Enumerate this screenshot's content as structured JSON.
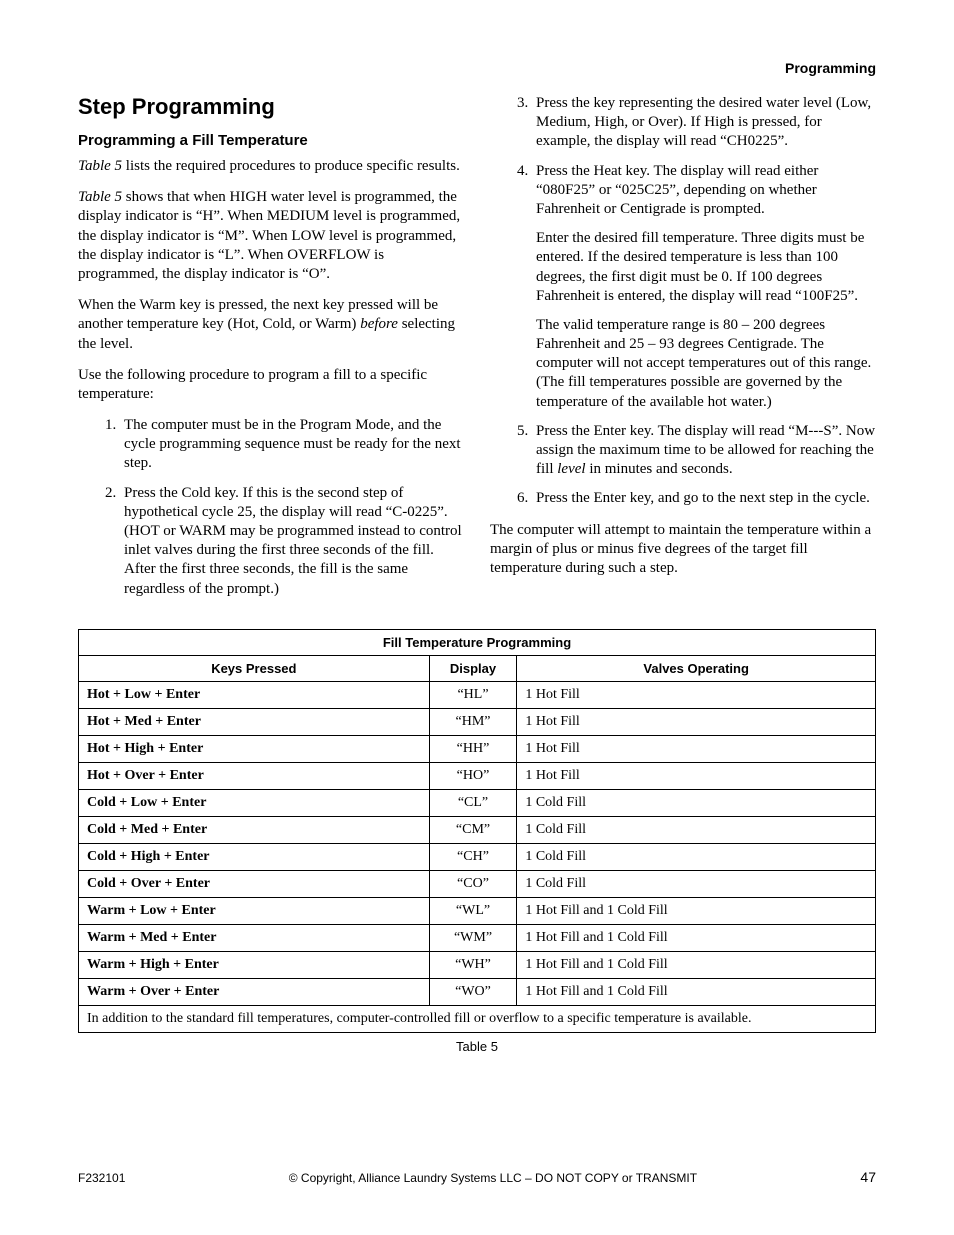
{
  "header": {
    "section": "Programming"
  },
  "left": {
    "h1": "Step Programming",
    "h2": "Programming a Fill Temperature",
    "p1_pre": "Table 5",
    "p1_post": " lists the required procedures to produce specific results.",
    "p2_pre": "Table 5",
    "p2_post": " shows that when HIGH water level is programmed, the display indicator is “H”. When MEDIUM level is programmed, the display indicator is “M”. When LOW level is programmed, the display indicator is “L”. When OVERFLOW is programmed, the display indicator is “O”.",
    "p3_a": "When the Warm key is pressed, the next key pressed will be another temperature key (Hot, Cold, or Warm) ",
    "p3_b": "before",
    "p3_c": " selecting the level.",
    "p4": "Use the following procedure to program a fill to a specific temperature:",
    "li1": "The computer must be in the Program Mode, and the cycle programming sequence must be ready for the next step.",
    "li2": "Press the Cold key. If this is the second step of hypothetical cycle 25, the display will read “C-0225”. (HOT or WARM may be programmed instead to control inlet valves during the first three seconds of the fill. After the first three seconds, the fill is the same regardless of the prompt.)"
  },
  "right": {
    "li3": "Press the key representing the desired water level (Low, Medium, High, or Over). If High is pressed, for example, the display will read “CH0225”.",
    "li4": "Press the Heat key. The display will read either “080F25” or “025C25”, depending on whether Fahrenheit or Centigrade is prompted.",
    "li4_sub1": "Enter the desired fill temperature. Three digits must be entered. If the desired temperature is less than 100 degrees, the first digit must be 0. If 100 degrees Fahrenheit is entered, the display will read “100F25”.",
    "li4_sub2": "The valid temperature range is 80 – 200 degrees Fahrenheit and 25 – 93 degrees Centigrade. The computer will not accept temperatures out of this range. (The fill temperatures possible are governed by the temperature of the available hot water.)",
    "li5_a": "Press the Enter key. The display will read “M---S”. Now assign the maximum time to be allowed for reaching the fill ",
    "li5_b": "level",
    "li5_c": " in minutes and seconds.",
    "li6": "Press the Enter key, and go to the next step in the cycle.",
    "p_after": "The computer will attempt to maintain the temperature within a margin of plus or minus five degrees of the target fill temperature during such a step."
  },
  "table": {
    "title": "Fill Temperature Programming",
    "col1": "Keys Pressed",
    "col2": "Display",
    "col3": "Valves Operating",
    "rows": [
      {
        "keys": "Hot + Low + Enter",
        "disp": "“HL”",
        "valves": "1 Hot Fill"
      },
      {
        "keys": "Hot + Med + Enter",
        "disp": "“HM”",
        "valves": "1 Hot Fill"
      },
      {
        "keys": "Hot + High + Enter",
        "disp": "“HH”",
        "valves": "1 Hot Fill"
      },
      {
        "keys": "Hot + Over + Enter",
        "disp": "“HO”",
        "valves": "1 Hot Fill"
      },
      {
        "keys": "Cold + Low + Enter",
        "disp": "“CL”",
        "valves": "1 Cold Fill"
      },
      {
        "keys": "Cold + Med + Enter",
        "disp": "“CM”",
        "valves": "1 Cold Fill"
      },
      {
        "keys": "Cold + High + Enter",
        "disp": "“CH”",
        "valves": "1 Cold Fill"
      },
      {
        "keys": "Cold + Over + Enter",
        "disp": "“CO”",
        "valves": "1 Cold Fill"
      },
      {
        "keys": "Warm + Low + Enter",
        "disp": "“WL”",
        "valves": "1 Hot Fill and 1 Cold Fill"
      },
      {
        "keys": "Warm + Med + Enter",
        "disp": "“WM”",
        "valves": "1 Hot Fill and 1 Cold Fill"
      },
      {
        "keys": "Warm + High + Enter",
        "disp": "“WH”",
        "valves": "1 Hot Fill and 1 Cold Fill"
      },
      {
        "keys": "Warm + Over + Enter",
        "disp": "“WO”",
        "valves": "1 Hot Fill and 1 Cold Fill"
      }
    ],
    "note": "In addition to the standard fill temperatures, computer-controlled fill or overflow to a specific temperature is available.",
    "caption": "Table 5"
  },
  "footer": {
    "docnum": "F232101",
    "copyright": "© Copyright, Alliance Laundry Systems LLC – DO NOT COPY or TRANSMIT",
    "pagenum": "47"
  }
}
